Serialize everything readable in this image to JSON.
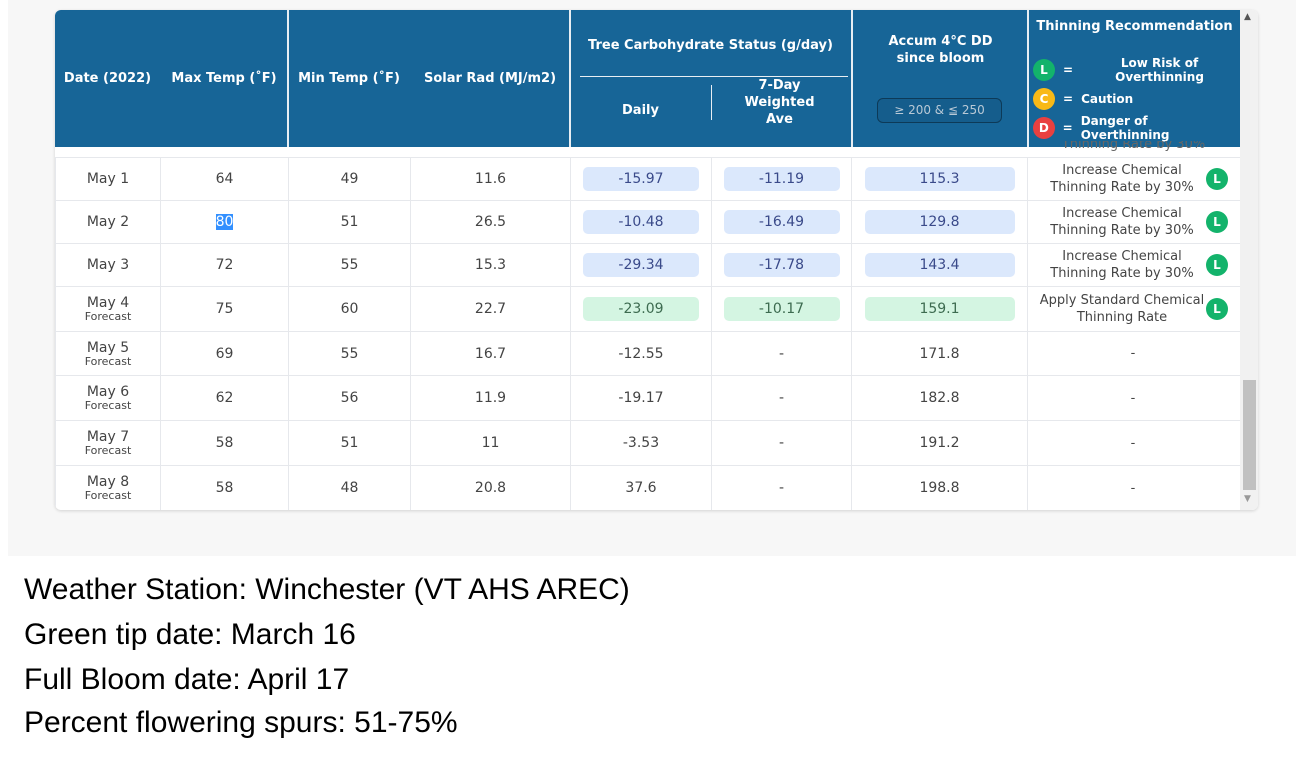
{
  "headers": {
    "date": "Date (2022)",
    "max": "Max Temp (˚F)",
    "min": "Min Temp (˚F)",
    "solar": "Solar Rad (MJ/m2)",
    "carb": "Tree Carbohydrate Status (g/day)",
    "daily": "Daily",
    "weekly": "7-Day Weighted Ave",
    "accum": "Accum 4°C DD since bloom",
    "accum_filter": "≥ 200 & ≦ 250",
    "thin": "Thinning Recommendation"
  },
  "legend": [
    {
      "letter": "L",
      "label": "Low Risk of Overthinning",
      "color": "#13b36b"
    },
    {
      "letter": "C",
      "label": "Caution",
      "color": "#f9b916"
    },
    {
      "letter": "D",
      "label": "Danger of Overthinning",
      "color": "#e94040"
    }
  ],
  "rows": [
    {
      "date": "May 1",
      "sub": "",
      "max": "64",
      "min": "49",
      "solar": "11.6",
      "daily": "-15.97",
      "weekly": "-11.19",
      "accum": "115.3",
      "rec": "Increase Chemical Thinning Rate by 30%",
      "badge": "L",
      "hl": "blue"
    },
    {
      "date": "May 2",
      "sub": "",
      "max": "80",
      "min": "51",
      "solar": "26.5",
      "daily": "-10.48",
      "weekly": "-16.49",
      "accum": "129.8",
      "rec": "Increase Chemical Thinning Rate by 30%",
      "badge": "L",
      "hl": "blue"
    },
    {
      "date": "May 3",
      "sub": "",
      "max": "72",
      "min": "55",
      "solar": "15.3",
      "daily": "-29.34",
      "weekly": "-17.78",
      "accum": "143.4",
      "rec": "Increase Chemical Thinning Rate by 30%",
      "badge": "L",
      "hl": "blue"
    },
    {
      "date": "May 4",
      "sub": "Forecast",
      "max": "75",
      "min": "60",
      "solar": "22.7",
      "daily": "-23.09",
      "weekly": "-10.17",
      "accum": "159.1",
      "rec": "Apply Standard Chemical Thinning Rate",
      "badge": "L",
      "hl": "green"
    },
    {
      "date": "May 5",
      "sub": "Forecast",
      "max": "69",
      "min": "55",
      "solar": "16.7",
      "daily": "-12.55",
      "weekly": "-",
      "accum": "171.8",
      "rec": "-",
      "badge": "",
      "hl": ""
    },
    {
      "date": "May 6",
      "sub": "Forecast",
      "max": "62",
      "min": "56",
      "solar": "11.9",
      "daily": "-19.17",
      "weekly": "-",
      "accum": "182.8",
      "rec": "-",
      "badge": "",
      "hl": ""
    },
    {
      "date": "May 7",
      "sub": "Forecast",
      "max": "58",
      "min": "51",
      "solar": "11",
      "daily": "-3.53",
      "weekly": "-",
      "accum": "191.2",
      "rec": "-",
      "badge": "",
      "hl": ""
    },
    {
      "date": "May 8",
      "sub": "Forecast",
      "max": "58",
      "min": "48",
      "solar": "20.8",
      "daily": "37.6",
      "weekly": "-",
      "accum": "198.8",
      "rec": "-",
      "badge": "",
      "hl": ""
    }
  ],
  "caption": [
    "Weather Station: Winchester (VT AHS AREC)",
    "Green tip date: March 16",
    "Full Bloom date: April 17",
    "Percent flowering spurs: 51-75%"
  ]
}
